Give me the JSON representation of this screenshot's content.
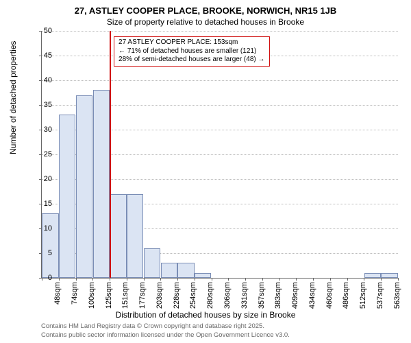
{
  "title_main": "27, ASTLEY COOPER PLACE, BROOKE, NORWICH, NR15 1JB",
  "title_sub": "Size of property relative to detached houses in Brooke",
  "ylabel": "Number of detached properties",
  "xlabel": "Distribution of detached houses by size in Brooke",
  "footer1": "Contains HM Land Registry data © Crown copyright and database right 2025.",
  "footer2": "Contains public sector information licensed under the Open Government Licence v3.0.",
  "chart": {
    "type": "histogram",
    "background_color": "#ffffff",
    "grid_color": "#bbbbbb",
    "axis_color": "#666666",
    "bar_fill": "#dbe4f3",
    "bar_border": "#7a8db5",
    "marker_color": "#d01010",
    "label_fontsize": 12,
    "tick_fontsize": 11,
    "ylim": [
      0,
      50
    ],
    "ytick_step": 5,
    "categories": [
      "48sqm",
      "74sqm",
      "100sqm",
      "125sqm",
      "151sqm",
      "177sqm",
      "203sqm",
      "228sqm",
      "254sqm",
      "280sqm",
      "306sqm",
      "331sqm",
      "357sqm",
      "383sqm",
      "409sqm",
      "434sqm",
      "460sqm",
      "486sqm",
      "512sqm",
      "537sqm",
      "563sqm"
    ],
    "values": [
      13,
      33,
      37,
      38,
      17,
      17,
      6,
      3,
      3,
      1,
      0,
      0,
      0,
      0,
      0,
      0,
      0,
      0,
      0,
      1,
      1
    ],
    "marker_index": 4,
    "annotation": {
      "line1": "27 ASTLEY COOPER PLACE: 153sqm",
      "line2": "← 71% of detached houses are smaller (121)",
      "line3": "28% of semi-detached houses are larger (48) →"
    }
  }
}
